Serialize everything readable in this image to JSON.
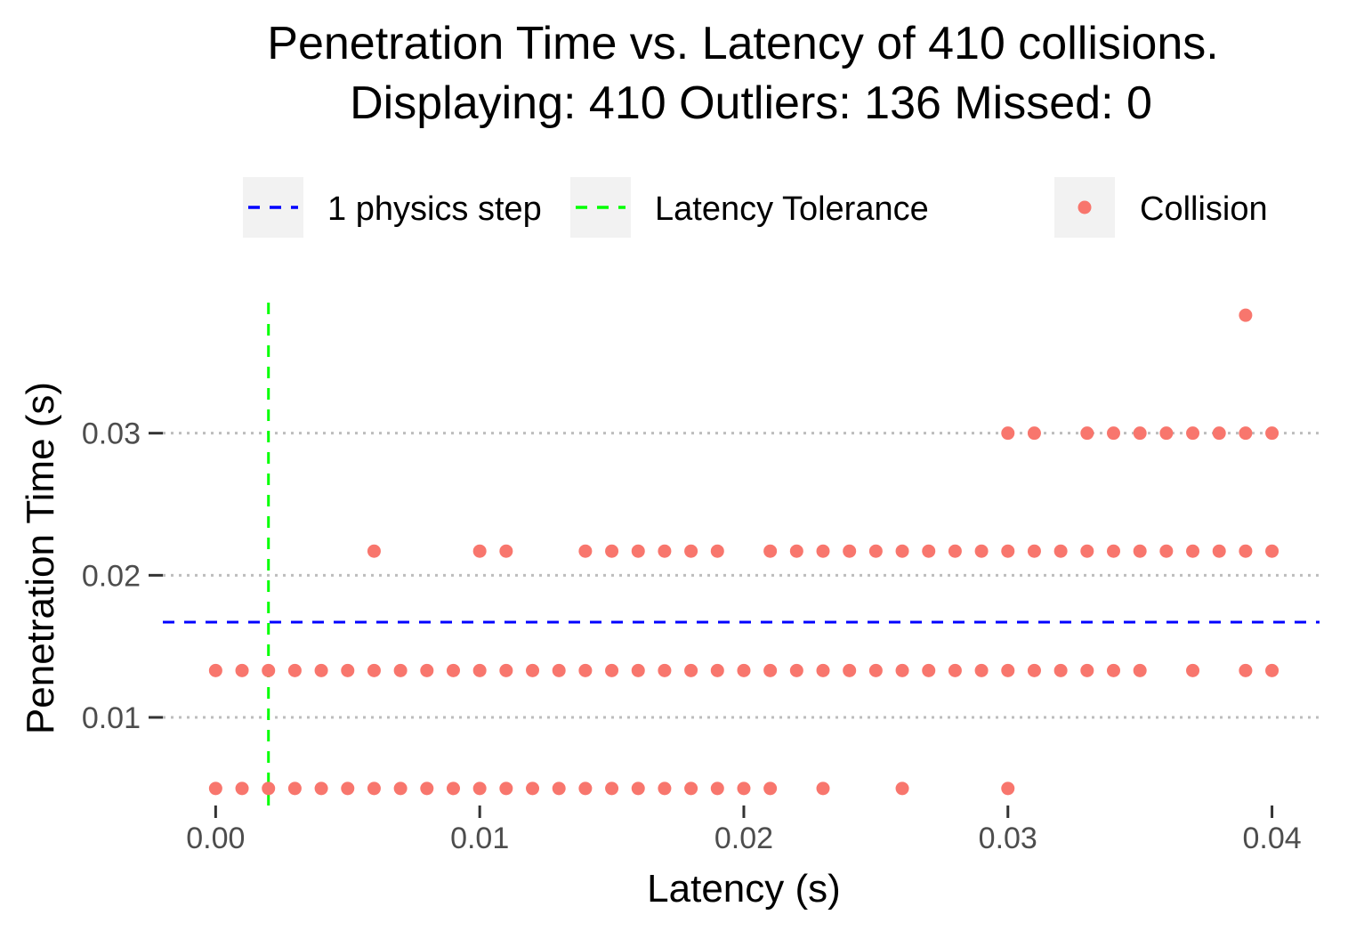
{
  "chart_data": {
    "type": "scatter",
    "title": "Penetration Time vs. Latency of 410 collisions.",
    "subtitle": "Displaying: 410 Outliers: 136 Missed: 0",
    "xlabel": "Latency (s)",
    "ylabel": "Penetration Time (s)",
    "xlim": [
      -0.002,
      0.0418
    ],
    "ylim": [
      0.0038,
      0.0395
    ],
    "x_ticks": [
      0.0,
      0.01,
      0.02,
      0.03,
      0.04
    ],
    "x_tick_labels": [
      "0.00",
      "0.01",
      "0.02",
      "0.03",
      "0.04"
    ],
    "y_ticks": [
      0.01,
      0.02,
      0.03
    ],
    "y_tick_labels": [
      "0.01",
      "0.02",
      "0.03"
    ],
    "grid": "horizontal-major-dotted",
    "legend_position": "top",
    "legend": [
      {
        "label": "1 physics step",
        "kind": "dashed-line",
        "color": "#0000ff"
      },
      {
        "label": "Latency Tolerance",
        "kind": "dashed-line",
        "color": "#00ff00"
      },
      {
        "label": "Collision",
        "kind": "point",
        "color": "#f8766d"
      }
    ],
    "reference_lines": [
      {
        "name": "1 physics step",
        "orientation": "horizontal",
        "value": 0.0167,
        "color": "#0000ff"
      },
      {
        "name": "Latency Tolerance",
        "orientation": "vertical",
        "value": 0.002,
        "color": "#00ff00"
      }
    ],
    "series": [
      {
        "name": "Collision",
        "color": "#f8766d",
        "points": [
          [
            0.0,
            0.005
          ],
          [
            0.001,
            0.005
          ],
          [
            0.002,
            0.005
          ],
          [
            0.003,
            0.005
          ],
          [
            0.004,
            0.005
          ],
          [
            0.005,
            0.005
          ],
          [
            0.006,
            0.005
          ],
          [
            0.007,
            0.005
          ],
          [
            0.008,
            0.005
          ],
          [
            0.009,
            0.005
          ],
          [
            0.01,
            0.005
          ],
          [
            0.011,
            0.005
          ],
          [
            0.012,
            0.005
          ],
          [
            0.013,
            0.005
          ],
          [
            0.014,
            0.005
          ],
          [
            0.015,
            0.005
          ],
          [
            0.016,
            0.005
          ],
          [
            0.017,
            0.005
          ],
          [
            0.018,
            0.005
          ],
          [
            0.019,
            0.005
          ],
          [
            0.02,
            0.005
          ],
          [
            0.021,
            0.005
          ],
          [
            0.023,
            0.005
          ],
          [
            0.026,
            0.005
          ],
          [
            0.03,
            0.005
          ],
          [
            0.0,
            0.0133
          ],
          [
            0.001,
            0.0133
          ],
          [
            0.002,
            0.0133
          ],
          [
            0.003,
            0.0133
          ],
          [
            0.004,
            0.0133
          ],
          [
            0.005,
            0.0133
          ],
          [
            0.006,
            0.0133
          ],
          [
            0.007,
            0.0133
          ],
          [
            0.008,
            0.0133
          ],
          [
            0.009,
            0.0133
          ],
          [
            0.01,
            0.0133
          ],
          [
            0.011,
            0.0133
          ],
          [
            0.012,
            0.0133
          ],
          [
            0.013,
            0.0133
          ],
          [
            0.014,
            0.0133
          ],
          [
            0.015,
            0.0133
          ],
          [
            0.016,
            0.0133
          ],
          [
            0.017,
            0.0133
          ],
          [
            0.018,
            0.0133
          ],
          [
            0.019,
            0.0133
          ],
          [
            0.02,
            0.0133
          ],
          [
            0.021,
            0.0133
          ],
          [
            0.022,
            0.0133
          ],
          [
            0.023,
            0.0133
          ],
          [
            0.024,
            0.0133
          ],
          [
            0.025,
            0.0133
          ],
          [
            0.026,
            0.0133
          ],
          [
            0.027,
            0.0133
          ],
          [
            0.028,
            0.0133
          ],
          [
            0.029,
            0.0133
          ],
          [
            0.03,
            0.0133
          ],
          [
            0.031,
            0.0133
          ],
          [
            0.032,
            0.0133
          ],
          [
            0.033,
            0.0133
          ],
          [
            0.034,
            0.0133
          ],
          [
            0.035,
            0.0133
          ],
          [
            0.037,
            0.0133
          ],
          [
            0.039,
            0.0133
          ],
          [
            0.04,
            0.0133
          ],
          [
            0.006,
            0.0217
          ],
          [
            0.01,
            0.0217
          ],
          [
            0.011,
            0.0217
          ],
          [
            0.014,
            0.0217
          ],
          [
            0.015,
            0.0217
          ],
          [
            0.016,
            0.0217
          ],
          [
            0.017,
            0.0217
          ],
          [
            0.018,
            0.0217
          ],
          [
            0.019,
            0.0217
          ],
          [
            0.021,
            0.0217
          ],
          [
            0.022,
            0.0217
          ],
          [
            0.023,
            0.0217
          ],
          [
            0.024,
            0.0217
          ],
          [
            0.025,
            0.0217
          ],
          [
            0.026,
            0.0217
          ],
          [
            0.027,
            0.0217
          ],
          [
            0.028,
            0.0217
          ],
          [
            0.029,
            0.0217
          ],
          [
            0.03,
            0.0217
          ],
          [
            0.031,
            0.0217
          ],
          [
            0.032,
            0.0217
          ],
          [
            0.033,
            0.0217
          ],
          [
            0.034,
            0.0217
          ],
          [
            0.035,
            0.0217
          ],
          [
            0.036,
            0.0217
          ],
          [
            0.037,
            0.0217
          ],
          [
            0.038,
            0.0217
          ],
          [
            0.039,
            0.0217
          ],
          [
            0.04,
            0.0217
          ],
          [
            0.03,
            0.03
          ],
          [
            0.031,
            0.03
          ],
          [
            0.033,
            0.03
          ],
          [
            0.034,
            0.03
          ],
          [
            0.035,
            0.03
          ],
          [
            0.036,
            0.03
          ],
          [
            0.037,
            0.03
          ],
          [
            0.038,
            0.03
          ],
          [
            0.039,
            0.03
          ],
          [
            0.04,
            0.03
          ],
          [
            0.039,
            0.0383
          ]
        ]
      }
    ]
  }
}
